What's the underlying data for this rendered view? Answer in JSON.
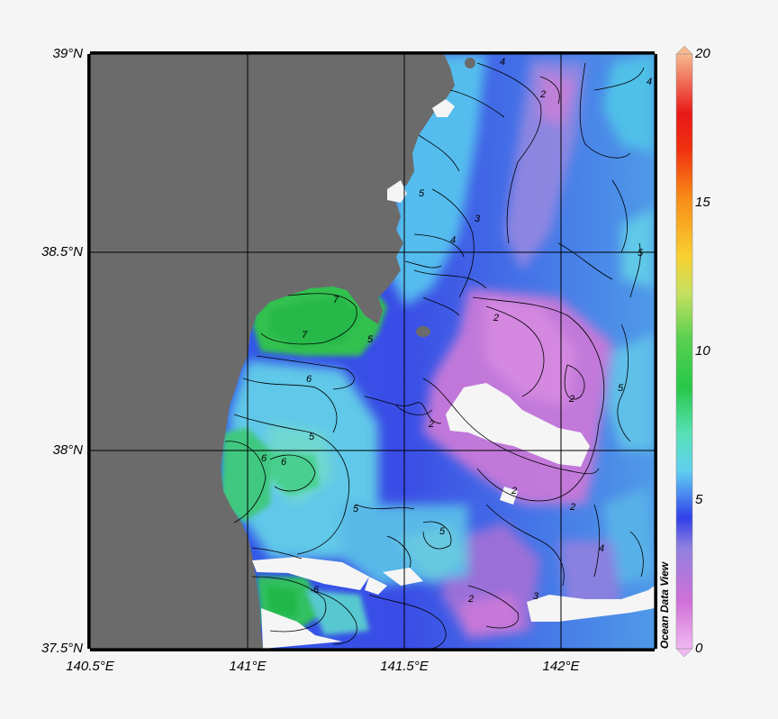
{
  "map": {
    "lat_labels": [
      "39°N",
      "38.5°N",
      "38°N",
      "37.5°N"
    ],
    "lon_labels": [
      "140.5°E",
      "141°E",
      "141.5°E",
      "142°E"
    ],
    "colorbar": {
      "ticks": [
        "20",
        "15",
        "10",
        "5",
        "0"
      ],
      "range": [
        0,
        20
      ],
      "branding": "Ocean Data View",
      "colors": [
        "#e8a8e8",
        "#e070d8",
        "#a878d8",
        "#4050e0",
        "#2a48e8",
        "#50a8f0",
        "#60d8e8",
        "#50d8a8",
        "#30d040",
        "#20c020",
        "#b0e050",
        "#f0d030",
        "#f8a020",
        "#f05010",
        "#e81010",
        "#f06060",
        "#f8b090"
      ]
    },
    "contour_labels": [
      "2",
      "3",
      "4",
      "5",
      "6",
      "7"
    ],
    "colors": {
      "land": "#6b6b6b",
      "ocean_low": "#c878d8",
      "ocean_mid": "#3048e8",
      "ocean_high": "#58c8f0",
      "coastal_green": "#30c050",
      "gap": "#f5f5f5"
    }
  }
}
